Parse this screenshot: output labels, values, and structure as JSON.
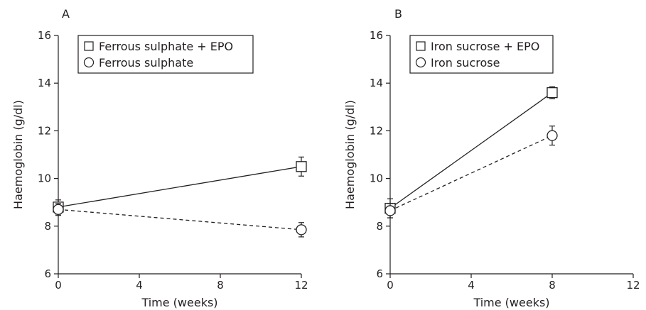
{
  "chart_data": [
    {
      "type": "line",
      "panel_label": "A",
      "xlabel": "Time (weeks)",
      "ylabel": "Haemoglobin (g/dl)",
      "xlim": [
        0,
        12
      ],
      "ylim": [
        6,
        16
      ],
      "xticks": [
        0,
        4,
        8,
        12
      ],
      "yticks": [
        6,
        8,
        10,
        12,
        14,
        16
      ],
      "grid": false,
      "legend_position": "top-left",
      "series": [
        {
          "name": "Ferrous sulphate + EPO",
          "marker": "square",
          "line": "solid",
          "x": [
            0,
            12
          ],
          "y": [
            8.8,
            10.5
          ],
          "err": [
            0.3,
            0.4
          ]
        },
        {
          "name": "Ferrous sulphate",
          "marker": "circle",
          "line": "dashed",
          "x": [
            0,
            12
          ],
          "y": [
            8.7,
            7.85
          ],
          "err": [
            0.25,
            0.3
          ]
        }
      ]
    },
    {
      "type": "line",
      "panel_label": "B",
      "xlabel": "Time (weeks)",
      "ylabel": "Haemoglobin (g/dl)",
      "xlim": [
        0,
        12
      ],
      "ylim": [
        6,
        16
      ],
      "xticks": [
        0,
        4,
        8,
        12
      ],
      "yticks": [
        6,
        8,
        10,
        12,
        14,
        16
      ],
      "grid": false,
      "legend_position": "top-left",
      "series": [
        {
          "name": "Iron sucrose + EPO",
          "marker": "square",
          "line": "solid",
          "x": [
            0,
            8
          ],
          "y": [
            8.75,
            13.6
          ],
          "err": [
            0.4,
            0.25
          ]
        },
        {
          "name": "Iron sucrose",
          "marker": "circle",
          "line": "dashed",
          "x": [
            0,
            8
          ],
          "y": [
            8.65,
            11.8
          ],
          "err": [
            0.3,
            0.4
          ]
        }
      ]
    }
  ]
}
